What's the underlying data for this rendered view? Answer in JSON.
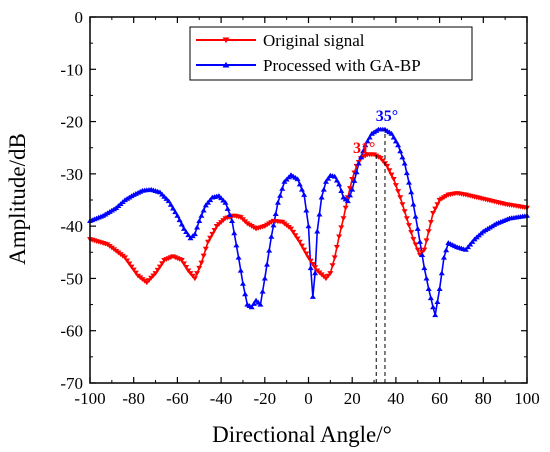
{
  "chart_data": {
    "type": "line",
    "xlabel": "Directional Angle/°",
    "ylabel": "Amplitude/dB",
    "xlim": [
      -100,
      100
    ],
    "ylim": [
      -70,
      0
    ],
    "xticks": [
      -100,
      -80,
      -60,
      -40,
      -20,
      0,
      20,
      40,
      60,
      80,
      100
    ],
    "yticks": [
      0,
      -10,
      -20,
      -30,
      -40,
      -50,
      -60,
      -70
    ],
    "legend_position": "top-center",
    "series": [
      {
        "name": "Original signal",
        "color": "#ff0000",
        "marker": "triangle-down",
        "x": [
          -100,
          -92,
          -84,
          -78,
          -74,
          -70,
          -66,
          -62,
          -58,
          -55,
          -52,
          -49,
          -46,
          -42,
          -38,
          -34,
          -31,
          -28,
          -24,
          -20,
          -16,
          -12,
          -8,
          -4,
          0,
          4,
          8,
          10,
          12,
          14,
          16,
          18,
          20,
          22,
          24,
          27,
          30,
          33,
          36,
          39,
          42,
          45,
          48,
          51,
          53,
          55,
          57,
          60,
          64,
          68,
          72,
          78,
          84,
          90,
          96,
          100
        ],
        "y": [
          -42.5,
          -43.5,
          -46,
          -49.5,
          -50.8,
          -49,
          -46.5,
          -45.8,
          -46.5,
          -48.5,
          -50,
          -47,
          -43,
          -40,
          -38.5,
          -38,
          -38.3,
          -39.5,
          -40.5,
          -40,
          -39,
          -39.2,
          -40.5,
          -43,
          -46,
          -48.5,
          -50,
          -49,
          -46,
          -42,
          -38.5,
          -34.5,
          -31,
          -28.5,
          -27,
          -26.3,
          -26.3,
          -27,
          -28.5,
          -31,
          -34.5,
          -38.5,
          -42.5,
          -45.5,
          -44.5,
          -41,
          -37.5,
          -35,
          -34,
          -33.7,
          -34,
          -34.6,
          -35.2,
          -35.8,
          -36.2,
          -36.5
        ]
      },
      {
        "name": "Processed with GA-BP",
        "color": "#0000ff",
        "marker": "triangle-up",
        "x": [
          -100,
          -94,
          -88,
          -84,
          -80,
          -76,
          -72,
          -68,
          -64,
          -60,
          -57,
          -54,
          -52,
          -50,
          -47,
          -44,
          -41,
          -38,
          -35,
          -32,
          -30,
          -28,
          -26,
          -24,
          -22,
          -20,
          -17,
          -14,
          -11,
          -8,
          -5,
          -2,
          0,
          1,
          2,
          3,
          4,
          6,
          8,
          10,
          12,
          14,
          16,
          18,
          20,
          23,
          26,
          29,
          32,
          35,
          38,
          41,
          44,
          47,
          50,
          53,
          55,
          57,
          58,
          60,
          62,
          64,
          68,
          72,
          76,
          80,
          86,
          92,
          100
        ],
        "y": [
          -39,
          -38,
          -36.5,
          -35,
          -34,
          -33.2,
          -33,
          -33.5,
          -35.2,
          -38,
          -40.5,
          -42.3,
          -41.5,
          -39,
          -36,
          -34.5,
          -34.2,
          -35.5,
          -39,
          -46,
          -51,
          -55,
          -55.5,
          -54.2,
          -55,
          -50,
          -42,
          -35.5,
          -31.5,
          -30.2,
          -31,
          -34,
          -40,
          -48,
          -53.5,
          -49,
          -41,
          -34.5,
          -31.5,
          -30.3,
          -30.5,
          -32,
          -34.5,
          -35.2,
          -33,
          -28,
          -24.5,
          -22.3,
          -21.5,
          -21.5,
          -22.3,
          -24.5,
          -28,
          -33.5,
          -40.5,
          -48,
          -52,
          -55.5,
          -57,
          -52,
          -46,
          -43.2,
          -44,
          -44.5,
          -42.5,
          -41,
          -39.5,
          -38.5,
          -38
        ]
      }
    ],
    "annotations": [
      {
        "text": "31°",
        "x": 31,
        "color": "#ff0000"
      },
      {
        "text": "35°",
        "x": 35,
        "color": "#0000ff"
      }
    ]
  }
}
